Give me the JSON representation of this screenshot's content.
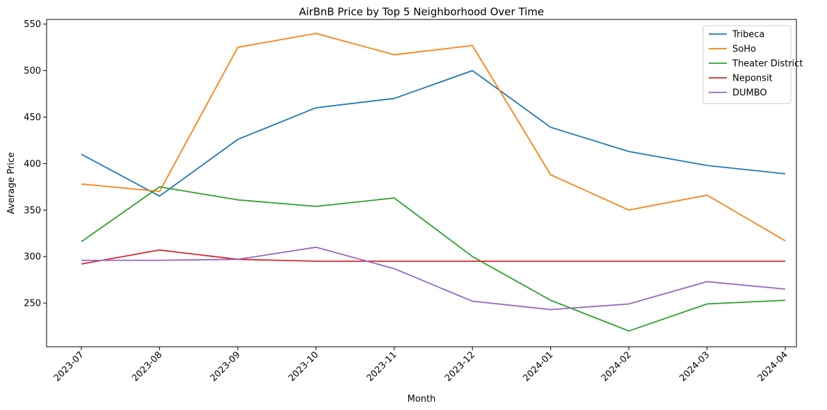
{
  "chart_data": {
    "type": "line",
    "title": "AirBnB Price by Top 5 Neighborhood Over Time",
    "xlabel": "Month",
    "ylabel": "Average Price",
    "categories": [
      "2023-07",
      "2023-08",
      "2023-09",
      "2023-10",
      "2023-11",
      "2023-12",
      "2024-01",
      "2024-02",
      "2024-03",
      "2024-04"
    ],
    "ylim": [
      203,
      555
    ],
    "yticks": [
      250,
      300,
      350,
      400,
      450,
      500,
      550
    ],
    "grid": false,
    "legend_position": "top-right",
    "series": [
      {
        "name": "Tribeca",
        "color": "#1f77b4",
        "values": [
          410,
          365,
          426,
          460,
          470,
          500,
          439,
          413,
          398,
          389
        ]
      },
      {
        "name": "SoHo",
        "color": "#ff7f0e",
        "values": [
          378,
          370,
          525,
          540,
          517,
          527,
          388,
          350,
          366,
          317
        ]
      },
      {
        "name": "Theater District",
        "color": "#2ca02c",
        "values": [
          316,
          375,
          361,
          354,
          363,
          300,
          253,
          220,
          249,
          253
        ]
      },
      {
        "name": "Neponsit",
        "color": "#d62728",
        "values": [
          292,
          307,
          297,
          295,
          295,
          295,
          295,
          295,
          295,
          295
        ]
      },
      {
        "name": "DUMBO",
        "color": "#9467bd",
        "values": [
          296,
          296,
          297,
          310,
          287,
          252,
          243,
          249,
          273,
          265
        ]
      }
    ]
  }
}
